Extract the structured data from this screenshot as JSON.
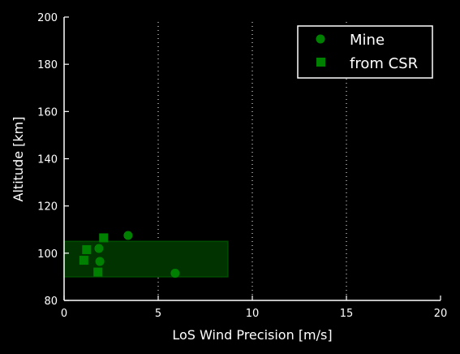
{
  "chart_data": {
    "type": "scatter",
    "title": "",
    "xlabel": "LoS Wind Precision [m/s]",
    "ylabel": "Altitude [km]",
    "xlim": [
      0,
      20
    ],
    "ylim": [
      80,
      200
    ],
    "xticks": [
      0,
      5,
      10,
      15,
      20
    ],
    "yticks": [
      80,
      100,
      120,
      140,
      160,
      180,
      200
    ],
    "x_tick_labels": [
      "0",
      "5",
      "10",
      "15",
      "20"
    ],
    "y_tick_labels": [
      "80",
      "100",
      "120",
      "140",
      "160",
      "180",
      "200"
    ],
    "grid": "vertical dotted",
    "legend_position": "top-right",
    "shaded_region": {
      "x": [
        0,
        8.7
      ],
      "y": [
        90,
        105
      ]
    },
    "series": [
      {
        "name": "Mine",
        "marker": "circle",
        "color": "#008000",
        "points": [
          {
            "x": 3.4,
            "y": 107.5
          },
          {
            "x": 1.85,
            "y": 102
          },
          {
            "x": 1.9,
            "y": 96.5
          },
          {
            "x": 5.9,
            "y": 91.5
          }
        ]
      },
      {
        "name": "from CSR",
        "marker": "square",
        "color": "#008000",
        "points": [
          {
            "x": 2.1,
            "y": 106.5
          },
          {
            "x": 1.2,
            "y": 101.5
          },
          {
            "x": 1.05,
            "y": 97
          },
          {
            "x": 1.8,
            "y": 92
          }
        ]
      }
    ]
  },
  "colors": {
    "background": "#000000",
    "axes": "#ffffff",
    "marker": "#008000",
    "shade_fill": "#003300",
    "shade_edge": "#004d00"
  }
}
